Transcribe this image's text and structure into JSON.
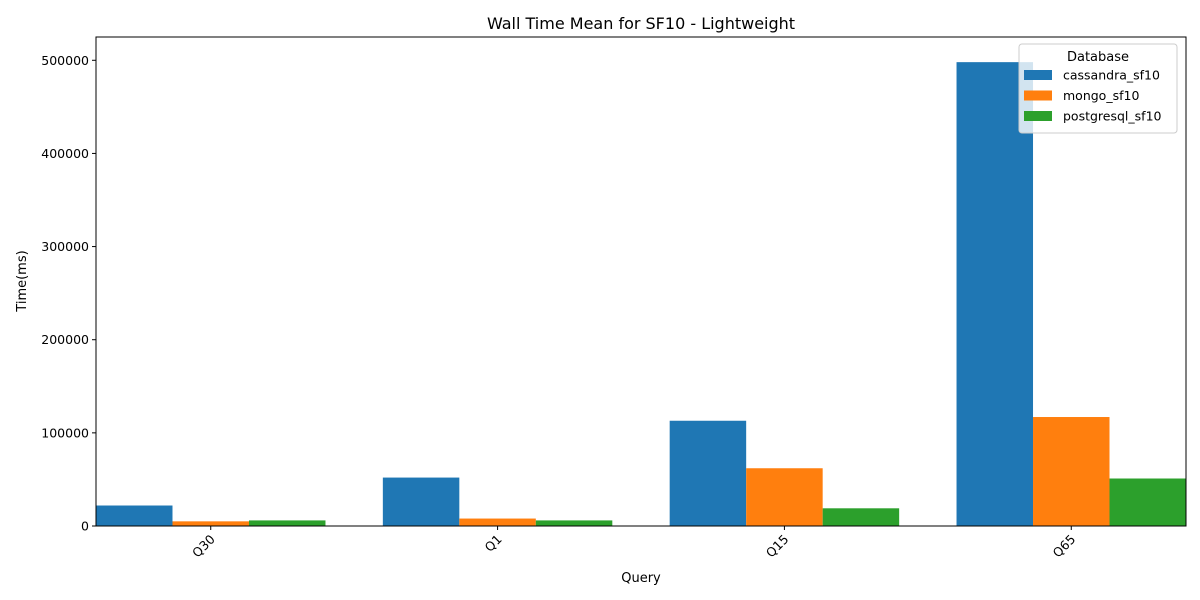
{
  "chart_data": {
    "type": "bar",
    "title": "Wall Time Mean for SF10 - Lightweight",
    "xlabel": "Query",
    "ylabel": "Time(ms)",
    "categories": [
      "Q30",
      "Q1",
      "Q15",
      "Q65"
    ],
    "ylim": [
      0,
      525000
    ],
    "yticks": [
      0,
      100000,
      200000,
      300000,
      400000,
      500000
    ],
    "grid": false,
    "legend": {
      "title": "Database",
      "position": "top-right"
    },
    "series": [
      {
        "name": "cassandra_sf10",
        "color": "#1f77b4",
        "values": [
          22000,
          52000,
          113000,
          498000
        ]
      },
      {
        "name": "mongo_sf10",
        "color": "#ff7f0e",
        "values": [
          5000,
          8000,
          62000,
          117000
        ]
      },
      {
        "name": "postgresql_sf10",
        "color": "#2ca02c",
        "values": [
          6000,
          6000,
          19000,
          51000
        ]
      }
    ]
  }
}
